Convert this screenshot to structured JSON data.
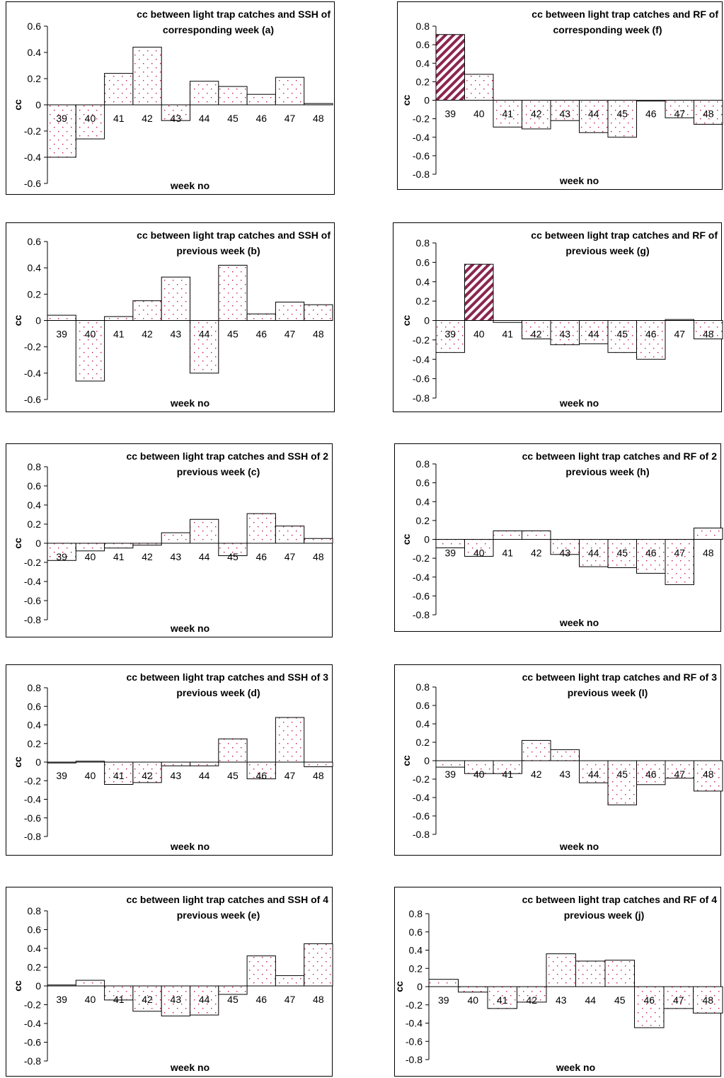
{
  "colors": {
    "dot": "#c0185a",
    "hatch": "#8b2550",
    "outline": "#000000",
    "background": "#ffffff"
  },
  "chart_data": [
    {
      "id": "a",
      "type": "bar",
      "title": "cc between light trap catches and SSH of corresponding week (a)",
      "title_lines": [
        "cc between light trap catches and SSH of",
        "corresponding week (a)"
      ],
      "xlabel": "week no",
      "ylabel": "cc",
      "ylim": [
        -0.6,
        0.6
      ],
      "yticks": [
        "0.6",
        "0.4",
        "0.2",
        "0",
        "-0.2",
        "-0.4",
        "-0.6"
      ],
      "categories": [
        "39",
        "40",
        "41",
        "42",
        "43",
        "44",
        "45",
        "46",
        "47",
        "48"
      ],
      "values": [
        -0.4,
        -0.26,
        0.24,
        0.44,
        -0.12,
        0.18,
        0.14,
        0.08,
        0.21,
        0.01
      ],
      "fills": [
        "dots",
        "dots",
        "dots",
        "dots",
        "dots",
        "dots",
        "dots",
        "dots",
        "dots",
        "dots"
      ]
    },
    {
      "id": "f",
      "type": "bar",
      "title": "cc between light trap catches and RF of corresponding week (f)",
      "title_lines": [
        "cc between light trap catches and RF of",
        "corresponding week (f)"
      ],
      "xlabel": "week no",
      "ylabel": "cc",
      "ylim": [
        -0.8,
        0.8
      ],
      "yticks": [
        "0.8",
        "0.6",
        "0.4",
        "0.2",
        "0",
        "-0.2",
        "-0.4",
        "-0.6",
        "-0.8"
      ],
      "categories": [
        "39",
        "40",
        "41",
        "42",
        "43",
        "44",
        "45",
        "46",
        "47",
        "48"
      ],
      "values": [
        0.71,
        0.28,
        -0.29,
        -0.31,
        -0.22,
        -0.35,
        -0.4,
        -0.01,
        -0.19,
        -0.26
      ],
      "fills": [
        "hatch",
        "dots",
        "dots",
        "dots",
        "dots",
        "dots",
        "dots",
        "dots",
        "dots",
        "dots"
      ]
    },
    {
      "id": "b",
      "type": "bar",
      "title": "cc between light trap catches and SSH of previous week (b)",
      "title_lines": [
        "cc between light trap catches and SSH of",
        "previous week (b)"
      ],
      "xlabel": "week no",
      "ylabel": "cc",
      "ylim": [
        -0.6,
        0.6
      ],
      "yticks": [
        "0.6",
        "0.4",
        "0.2",
        "0",
        "-0.2",
        "-0.4",
        "-0.6"
      ],
      "categories": [
        "39",
        "40",
        "41",
        "42",
        "43",
        "44",
        "45",
        "46",
        "47",
        "48"
      ],
      "values": [
        0.04,
        -0.46,
        0.03,
        0.15,
        0.33,
        -0.4,
        0.42,
        0.05,
        0.14,
        0.12
      ],
      "fills": [
        "dots",
        "dots",
        "dots",
        "dots",
        "dots",
        "dots",
        "dots",
        "dots",
        "dots",
        "dots"
      ]
    },
    {
      "id": "g",
      "type": "bar",
      "title": "cc between light trap catches and RF of previous week (g)",
      "title_lines": [
        "cc between light trap catches and RF of",
        "previous week (g)"
      ],
      "xlabel": "week no",
      "ylabel": "cc",
      "ylim": [
        -0.8,
        0.8
      ],
      "yticks": [
        "0.8",
        "0.6",
        "0.4",
        "0.2",
        "0",
        "-0.2",
        "-0.4",
        "-0.6",
        "-0.8"
      ],
      "categories": [
        "39",
        "40",
        "41",
        "42",
        "43",
        "44",
        "45",
        "46",
        "47",
        "48"
      ],
      "values": [
        -0.33,
        0.58,
        -0.02,
        -0.19,
        -0.25,
        -0.24,
        -0.33,
        -0.4,
        0.01,
        -0.19
      ],
      "fills": [
        "dots",
        "hatch",
        "dots",
        "dots",
        "dots",
        "dots",
        "dots",
        "dots",
        "dots",
        "dots"
      ]
    },
    {
      "id": "c",
      "type": "bar",
      "title": "cc between light trap catches and SSH of 2 previous week (c)",
      "title_lines": [
        "cc between light trap catches and SSH of 2",
        "previous week (c)"
      ],
      "xlabel": "week no",
      "ylabel": "cc",
      "ylim": [
        -0.8,
        0.8
      ],
      "yticks": [
        "0.8",
        "0.6",
        "0.4",
        "0.2",
        "0",
        "-0.2",
        "-0.4",
        "-0.6",
        "-0.8"
      ],
      "categories": [
        "39",
        "40",
        "41",
        "42",
        "43",
        "44",
        "45",
        "46",
        "47",
        "48"
      ],
      "values": [
        -0.18,
        -0.08,
        -0.05,
        -0.02,
        0.11,
        0.25,
        -0.13,
        0.31,
        0.18,
        0.05
      ],
      "fills": [
        "dots",
        "dots",
        "dots",
        "dots",
        "dots",
        "dots",
        "dots",
        "dots",
        "dots",
        "dots"
      ]
    },
    {
      "id": "h",
      "type": "bar",
      "title": "cc between light trap catches and RF of 2 previous week (h)",
      "title_lines": [
        "cc between light trap catches and RF of 2",
        "previous week (h)"
      ],
      "xlabel": "week no",
      "ylabel": "cc",
      "ylim": [
        -0.8,
        0.8
      ],
      "yticks": [
        "0.8",
        "0.6",
        "0.4",
        "0.2",
        "0",
        "-0.2",
        "-0.4",
        "-0.6",
        "-0.8"
      ],
      "categories": [
        "39",
        "40",
        "41",
        "42",
        "43",
        "44",
        "45",
        "46",
        "47",
        "48"
      ],
      "values": [
        -0.09,
        -0.18,
        0.09,
        0.09,
        -0.16,
        -0.29,
        -0.3,
        -0.36,
        -0.48,
        0.12
      ],
      "fills": [
        "dots",
        "dots",
        "dots",
        "dots",
        "dots",
        "dots",
        "dots",
        "dots",
        "dots",
        "dots"
      ]
    },
    {
      "id": "d",
      "type": "bar",
      "title": "cc between light trap catches and SSH of 3 previous week (d)",
      "title_lines": [
        "cc between light trap catches and SSH of 3",
        "previous week (d)"
      ],
      "xlabel": "week no",
      "ylabel": "cc",
      "ylim": [
        -0.8,
        0.8
      ],
      "yticks": [
        "0.8",
        "0.6",
        "0.4",
        "0.2",
        "0",
        "-0.2",
        "-0.4",
        "-0.6",
        "-0.8"
      ],
      "categories": [
        "39",
        "40",
        "41",
        "42",
        "43",
        "44",
        "45",
        "46",
        "47",
        "48"
      ],
      "values": [
        0.0,
        0.01,
        -0.24,
        -0.22,
        -0.04,
        -0.04,
        0.25,
        -0.18,
        0.48,
        -0.05
      ],
      "fills": [
        "dots",
        "dots",
        "dots",
        "dots",
        "dots",
        "dots",
        "dots",
        "dots",
        "dots",
        "dots"
      ]
    },
    {
      "id": "I",
      "type": "bar",
      "title": "cc between light trap catches and RF of 3 previous week (I)",
      "title_lines": [
        "cc between light trap catches and RF of 3",
        "previous week (I)"
      ],
      "xlabel": "week no",
      "ylabel": "cc",
      "ylim": [
        -0.8,
        0.8
      ],
      "yticks": [
        "0.8",
        "0.6",
        "0.4",
        "0.2",
        "0",
        "-0.2",
        "-0.4",
        "-0.6",
        "-0.8"
      ],
      "categories": [
        "39",
        "40",
        "41",
        "42",
        "43",
        "44",
        "45",
        "46",
        "47",
        "48"
      ],
      "values": [
        -0.07,
        -0.14,
        -0.14,
        0.22,
        0.12,
        -0.24,
        -0.48,
        -0.26,
        -0.19,
        -0.33
      ],
      "fills": [
        "dots",
        "dots",
        "dots",
        "dots",
        "dots",
        "dots",
        "dots",
        "dots",
        "dots",
        "dots"
      ]
    },
    {
      "id": "e",
      "type": "bar",
      "title": "cc between light trap catches and SSH of 4 previous week (e)",
      "title_lines": [
        "cc between light trap catches and SSH of 4",
        "previous week (e)"
      ],
      "xlabel": "week no",
      "ylabel": "cc",
      "ylim": [
        -0.8,
        0.8
      ],
      "yticks": [
        "0.8",
        "0.6",
        "0.4",
        "0.2",
        "0",
        "-0.2",
        "-0.4",
        "-0.6",
        "-0.8"
      ],
      "categories": [
        "39",
        "40",
        "41",
        "42",
        "43",
        "44",
        "45",
        "46",
        "47",
        "48"
      ],
      "values": [
        0.01,
        0.06,
        -0.15,
        -0.27,
        -0.32,
        -0.31,
        -0.09,
        0.32,
        0.11,
        0.45
      ],
      "fills": [
        "dots",
        "dots",
        "dots",
        "dots",
        "dots",
        "dots",
        "dots",
        "dots",
        "dots",
        "dots"
      ]
    },
    {
      "id": "j",
      "type": "bar",
      "title": "cc between light trap catches and RF of 4 previous week (j)",
      "title_lines": [
        "cc between light trap catches and RF of 4",
        "previous week (j)"
      ],
      "xlabel": "week no",
      "ylabel": "cc",
      "ylim": [
        -0.8,
        0.8
      ],
      "yticks": [
        "0.8",
        "0.6",
        "0.4",
        "0.2",
        "0",
        "-0.2",
        "-0.4",
        "-0.6",
        "-0.8"
      ],
      "categories": [
        "39",
        "40",
        "41",
        "42",
        "43",
        "44",
        "45",
        "46",
        "47",
        "48"
      ],
      "values": [
        0.08,
        -0.06,
        -0.24,
        -0.17,
        0.36,
        0.28,
        0.29,
        -0.45,
        -0.24,
        -0.29
      ],
      "fills": [
        "dots",
        "dots",
        "dots",
        "dots",
        "dots",
        "dots",
        "dots",
        "dots",
        "dots",
        "dots"
      ]
    }
  ]
}
